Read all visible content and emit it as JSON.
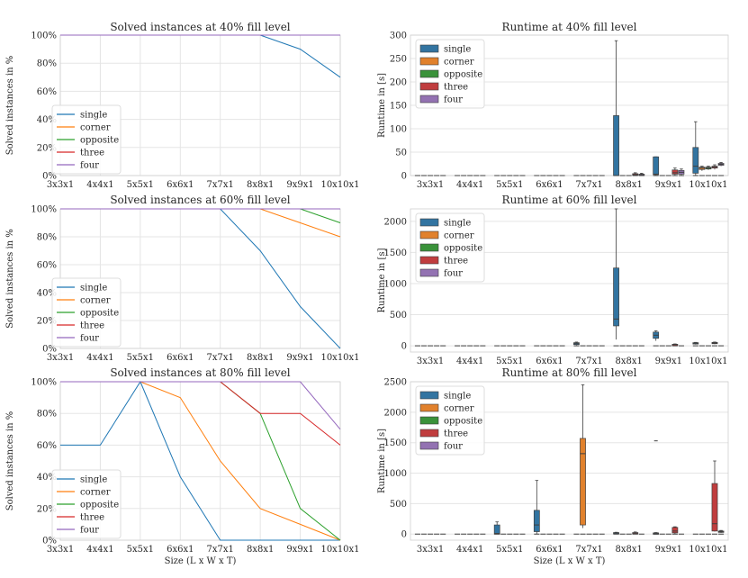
{
  "figure": {
    "xlabel": "Size (L x W x T)"
  },
  "colors": {
    "single": "#1f77b4",
    "corner": "#ff7f0e",
    "opposite": "#2ca02c",
    "three": "#d62728",
    "four": "#9467bd",
    "box_single": "#3274a1",
    "box_corner": "#e1812c",
    "box_opposite": "#3a923a",
    "box_three": "#c03d3e",
    "box_four": "#9372b2"
  },
  "chart_data": [
    {
      "id": "solved40",
      "type": "line",
      "title": "Solved instances at 40% fill level",
      "ylabel": "Solved instances in %",
      "xlabel": "",
      "categories": [
        "3x3x1",
        "4x4x1",
        "5x5x1",
        "6x6x1",
        "7x7x1",
        "8x8x1",
        "9x9x1",
        "10x10x1"
      ],
      "ylim": [
        0,
        100
      ],
      "yticks": [
        0,
        20,
        40,
        60,
        80,
        100
      ],
      "ytick_labels": [
        "0%",
        "20%",
        "40%",
        "60%",
        "80%",
        "100%"
      ],
      "legend_loc": "lower-left",
      "series": [
        {
          "name": "single",
          "values": [
            100,
            100,
            100,
            100,
            100,
            100,
            90,
            70
          ]
        },
        {
          "name": "corner",
          "values": [
            100,
            100,
            100,
            100,
            100,
            100,
            100,
            100
          ]
        },
        {
          "name": "opposite",
          "values": [
            100,
            100,
            100,
            100,
            100,
            100,
            100,
            100
          ]
        },
        {
          "name": "three",
          "values": [
            100,
            100,
            100,
            100,
            100,
            100,
            100,
            100
          ]
        },
        {
          "name": "four",
          "values": [
            100,
            100,
            100,
            100,
            100,
            100,
            100,
            100
          ]
        }
      ]
    },
    {
      "id": "solved60",
      "type": "line",
      "title": "Solved instances at 60% fill level",
      "ylabel": "Solved instances in %",
      "xlabel": "",
      "categories": [
        "3x3x1",
        "4x4x1",
        "5x5x1",
        "6x6x1",
        "7x7x1",
        "8x8x1",
        "9x9x1",
        "10x10x1"
      ],
      "ylim": [
        0,
        100
      ],
      "yticks": [
        0,
        20,
        40,
        60,
        80,
        100
      ],
      "ytick_labels": [
        "0%",
        "20%",
        "40%",
        "60%",
        "80%",
        "100%"
      ],
      "legend_loc": "lower-left",
      "series": [
        {
          "name": "single",
          "values": [
            100,
            100,
            100,
            100,
            100,
            70,
            30,
            0
          ]
        },
        {
          "name": "corner",
          "values": [
            100,
            100,
            100,
            100,
            100,
            100,
            90,
            80
          ]
        },
        {
          "name": "opposite",
          "values": [
            100,
            100,
            100,
            100,
            100,
            100,
            100,
            90
          ]
        },
        {
          "name": "three",
          "values": [
            100,
            100,
            100,
            100,
            100,
            100,
            100,
            100
          ]
        },
        {
          "name": "four",
          "values": [
            100,
            100,
            100,
            100,
            100,
            100,
            100,
            100
          ]
        }
      ]
    },
    {
      "id": "solved80",
      "type": "line",
      "title": "Solved instances at 80% fill level",
      "ylabel": "Solved instances in %",
      "xlabel": "Size (L x W x T)",
      "categories": [
        "3x3x1",
        "4x4x1",
        "5x5x1",
        "6x6x1",
        "7x7x1",
        "8x8x1",
        "9x9x1",
        "10x10x1"
      ],
      "ylim": [
        0,
        100
      ],
      "yticks": [
        0,
        20,
        40,
        60,
        80,
        100
      ],
      "ytick_labels": [
        "0%",
        "20%",
        "40%",
        "60%",
        "80%",
        "100%"
      ],
      "legend_loc": "lower-left",
      "series": [
        {
          "name": "single",
          "values": [
            60,
            60,
            100,
            40,
            0,
            0,
            0,
            0
          ]
        },
        {
          "name": "corner",
          "values": [
            100,
            100,
            100,
            90,
            50,
            20,
            10,
            0
          ]
        },
        {
          "name": "opposite",
          "values": [
            100,
            100,
            100,
            100,
            100,
            80,
            20,
            0
          ]
        },
        {
          "name": "three",
          "values": [
            100,
            100,
            100,
            100,
            100,
            80,
            80,
            60
          ]
        },
        {
          "name": "four",
          "values": [
            100,
            100,
            100,
            100,
            100,
            100,
            100,
            70
          ]
        }
      ]
    },
    {
      "id": "runtime40",
      "type": "box",
      "title": "Runtime at 40% fill level",
      "ylabel": "Runtime in [s]",
      "xlabel": "",
      "categories": [
        "3x3x1",
        "4x4x1",
        "5x5x1",
        "6x6x1",
        "7x7x1",
        "8x8x1",
        "9x9x1",
        "10x10x1"
      ],
      "ylim": [
        0,
        300
      ],
      "yticks": [
        0,
        50,
        100,
        150,
        200,
        250,
        300
      ],
      "legend_loc": "upper-left",
      "series_names": [
        "single",
        "corner",
        "opposite",
        "three",
        "four"
      ],
      "boxes": [
        {
          "cat": 5,
          "series": 0,
          "min": 0,
          "q1": 0,
          "med": 0,
          "q3": 128,
          "max": 288
        },
        {
          "cat": 6,
          "series": 0,
          "min": 0,
          "q1": 2,
          "med": 3,
          "q3": 40,
          "max": 40
        },
        {
          "cat": 7,
          "series": 0,
          "min": 0,
          "q1": 5,
          "med": 20,
          "q3": 60,
          "max": 115
        },
        {
          "cat": 7,
          "series": 1,
          "min": 10,
          "q1": 13,
          "med": 16,
          "q3": 18,
          "max": 20
        },
        {
          "cat": 7,
          "series": 2,
          "min": 12,
          "q1": 14,
          "med": 16,
          "q3": 18,
          "max": 20
        },
        {
          "cat": 7,
          "series": 3,
          "min": 13,
          "q1": 16,
          "med": 18,
          "q3": 20,
          "max": 23
        },
        {
          "cat": 7,
          "series": 4,
          "min": 20,
          "q1": 22,
          "med": 24,
          "q3": 26,
          "max": 28
        },
        {
          "cat": 6,
          "series": 3,
          "min": 0,
          "q1": 3,
          "med": 6,
          "q3": 12,
          "max": 16
        },
        {
          "cat": 6,
          "series": 4,
          "min": 0,
          "q1": 3,
          "med": 7,
          "q3": 11,
          "max": 14
        },
        {
          "cat": 5,
          "series": 3,
          "min": 0,
          "q1": 1,
          "med": 2,
          "q3": 4,
          "max": 6
        },
        {
          "cat": 5,
          "series": 4,
          "min": 0,
          "q1": 1,
          "med": 2,
          "q3": 3,
          "max": 5
        }
      ]
    },
    {
      "id": "runtime60",
      "type": "box",
      "title": "Runtime at 60% fill level",
      "ylabel": "Runtime in [s]",
      "xlabel": "",
      "categories": [
        "3x3x1",
        "4x4x1",
        "5x5x1",
        "6x6x1",
        "7x7x1",
        "8x8x1",
        "9x9x1",
        "10x10x1"
      ],
      "ylim": [
        -100,
        2200
      ],
      "yticks": [
        0,
        500,
        1000,
        1500,
        2000
      ],
      "legend_loc": "upper-left",
      "series_names": [
        "single",
        "corner",
        "opposite",
        "three",
        "four"
      ],
      "boxes": [
        {
          "cat": 4,
          "series": 0,
          "min": 10,
          "q1": 20,
          "med": 35,
          "q3": 50,
          "max": 60
        },
        {
          "cat": 5,
          "series": 0,
          "min": 100,
          "q1": 320,
          "med": 430,
          "q3": 1250,
          "max": 2200
        },
        {
          "cat": 6,
          "series": 0,
          "min": 80,
          "q1": 120,
          "med": 170,
          "q3": 220,
          "max": 240
        },
        {
          "cat": 6,
          "series": 3,
          "min": 10,
          "q1": 15,
          "med": 20,
          "q3": 25,
          "max": 30
        },
        {
          "cat": 7,
          "series": 0,
          "min": 20,
          "q1": 30,
          "med": 40,
          "q3": 50,
          "max": 55
        },
        {
          "cat": 7,
          "series": 3,
          "min": 25,
          "q1": 35,
          "med": 45,
          "q3": 55,
          "max": 60
        }
      ]
    },
    {
      "id": "runtime80",
      "type": "box",
      "title": "Runtime at 80% fill level",
      "ylabel": "Runtime in [s]",
      "xlabel": "Size (L x W x T)",
      "categories": [
        "3x3x1",
        "4x4x1",
        "5x5x1",
        "6x6x1",
        "7x7x1",
        "8x8x1",
        "9x9x1",
        "10x10x1"
      ],
      "ylim": [
        -100,
        2500
      ],
      "yticks": [
        0,
        500,
        1000,
        1500,
        2000,
        2500
      ],
      "legend_loc": "upper-left",
      "series_names": [
        "single",
        "corner",
        "opposite",
        "three",
        "four"
      ],
      "boxes": [
        {
          "cat": 2,
          "series": 0,
          "min": 0,
          "q1": 0,
          "med": 10,
          "q3": 150,
          "max": 200
        },
        {
          "cat": 3,
          "series": 0,
          "min": 0,
          "q1": 40,
          "med": 150,
          "q3": 390,
          "max": 880
        },
        {
          "cat": 4,
          "series": 1,
          "min": 100,
          "q1": 150,
          "med": 1320,
          "q3": 1570,
          "max": 2450
        },
        {
          "cat": 5,
          "series": 0,
          "min": 5,
          "q1": 10,
          "med": 15,
          "q3": 25,
          "max": 30
        },
        {
          "cat": 5,
          "series": 3,
          "min": 5,
          "q1": 10,
          "med": 15,
          "q3": 25,
          "max": 35
        },
        {
          "cat": 6,
          "series": 0,
          "min": 0,
          "q1": 5,
          "med": 10,
          "q3": 20,
          "max": 25
        },
        {
          "cat": 6,
          "series": 3,
          "min": 0,
          "q1": 20,
          "med": 50,
          "q3": 110,
          "max": 120
        },
        {
          "cat": 7,
          "series": 3,
          "min": 40,
          "q1": 50,
          "med": 170,
          "q3": 830,
          "max": 1200
        },
        {
          "cat": 7,
          "series": 4,
          "min": 20,
          "q1": 30,
          "med": 40,
          "q3": 50,
          "max": 60
        }
      ],
      "fliers": [
        {
          "cat": 6,
          "series": 0,
          "value": 1530
        }
      ]
    }
  ]
}
